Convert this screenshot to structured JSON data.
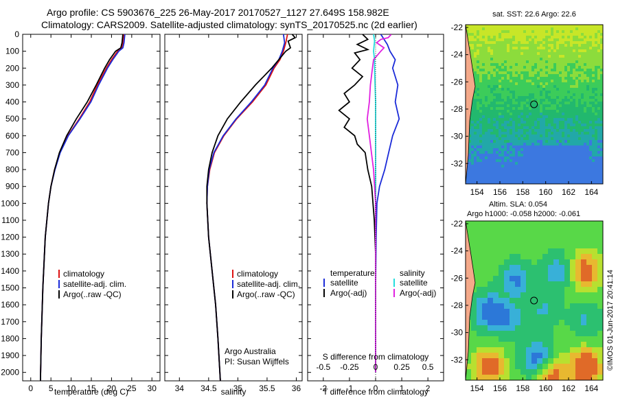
{
  "header": {
    "line1": "Argo profile: CS 5903676_225 26-May-2017 20170527_1127 27.649S 158.982E",
    "line2": "Climatology: CARS2009. Satellite-adjusted climatology: synTS_20170525.nc (2d earlier)"
  },
  "colors": {
    "climatology": "#dd1111",
    "satellite": "#1a2ad8",
    "argo": "#000000",
    "sal_satellite": "#22dddd",
    "sal_argo": "#e020e0"
  },
  "chart_data": [
    {
      "type": "line",
      "id": "temperature",
      "xlabel": "temperature (deg C)",
      "ylabel": "",
      "xlim": [
        -2,
        32
      ],
      "ylim": [
        2050,
        0
      ],
      "xticks": [
        0,
        5,
        10,
        15,
        20,
        25,
        30
      ],
      "yticks": [
        0,
        100,
        200,
        300,
        400,
        500,
        600,
        700,
        800,
        900,
        1000,
        1100,
        1200,
        1300,
        1400,
        1500,
        1600,
        1700,
        1800,
        1900,
        2000
      ],
      "legend": [
        "climatology",
        "satellite-adj. clim.",
        "Argo(..raw -QC)"
      ],
      "legend_placement": "center-right",
      "series": [
        {
          "name": "climatology",
          "color": "#dd1111",
          "depth": [
            0,
            50,
            80,
            100,
            150,
            200,
            300,
            400,
            500,
            600,
            700,
            800,
            900,
            1000,
            1200,
            1500,
            1800,
            2050
          ],
          "values": [
            23.0,
            22.8,
            22.5,
            21.5,
            20.0,
            18.7,
            16.5,
            14.6,
            12.0,
            9.2,
            7.2,
            5.9,
            5.0,
            4.4,
            3.6,
            3.0,
            2.6,
            2.4
          ]
        },
        {
          "name": "satellite-adj. clim.",
          "color": "#1a2ad8",
          "depth": [
            0,
            50,
            80,
            100,
            150,
            200,
            300,
            400,
            500,
            600,
            700,
            800,
            900,
            1000,
            1200,
            1500,
            1800,
            2050
          ],
          "values": [
            23.3,
            23.1,
            22.8,
            21.8,
            20.3,
            19.0,
            16.8,
            14.9,
            12.2,
            9.3,
            7.3,
            6.0,
            5.0,
            4.4,
            3.6,
            3.0,
            2.6,
            2.4
          ]
        },
        {
          "name": "Argo(..raw -QC)",
          "color": "#000000",
          "depth": [
            0,
            50,
            80,
            100,
            150,
            200,
            300,
            400,
            500,
            600,
            700,
            800,
            900,
            1000,
            1200,
            1500,
            1800,
            2050
          ],
          "values": [
            22.8,
            22.6,
            22.3,
            21.0,
            19.5,
            18.3,
            16.2,
            14.0,
            11.3,
            8.9,
            7.1,
            5.9,
            5.0,
            4.4,
            3.6,
            3.0,
            2.6,
            2.4
          ]
        }
      ]
    },
    {
      "type": "line",
      "id": "salinity",
      "xlabel": "salinity",
      "xlim": [
        33.75,
        36.1
      ],
      "ylim": [
        2050,
        0
      ],
      "xticks": [
        34,
        34.5,
        35,
        35.5,
        36
      ],
      "legend": [
        "climatology",
        "satellite-adj. clim.",
        "Argo(..raw -QC)"
      ],
      "legend_placement": "center-right",
      "annotation": [
        "Argo Australia",
        "PI: Susan Wijffels"
      ],
      "series": [
        {
          "name": "climatology",
          "color": "#dd1111",
          "depth": [
            0,
            50,
            100,
            150,
            200,
            300,
            400,
            500,
            600,
            700,
            800,
            900,
            1000,
            1200,
            1400,
            1600,
            1800,
            2050
          ],
          "values": [
            35.85,
            35.82,
            35.78,
            35.72,
            35.62,
            35.48,
            35.25,
            34.98,
            34.76,
            34.6,
            34.52,
            34.48,
            34.47,
            34.5,
            34.56,
            34.62,
            34.66,
            34.7
          ]
        },
        {
          "name": "satellite-adj. clim.",
          "color": "#1a2ad8",
          "depth": [
            0,
            50,
            100,
            150,
            200,
            300,
            400,
            500,
            600,
            700,
            800,
            900,
            1000,
            1200,
            1400,
            1600,
            1800,
            2050
          ],
          "values": [
            35.78,
            35.8,
            35.76,
            35.7,
            35.6,
            35.46,
            35.23,
            34.97,
            34.75,
            34.59,
            34.51,
            34.48,
            34.47,
            34.5,
            34.56,
            34.62,
            34.66,
            34.7
          ]
        },
        {
          "name": "Argo(..raw -QC)",
          "color": "#000000",
          "depth": [
            0,
            20,
            40,
            80,
            100,
            150,
            200,
            300,
            400,
            500,
            600,
            700,
            800,
            900,
            1000,
            1200,
            1400,
            1600,
            1800,
            2050
          ],
          "values": [
            35.93,
            35.98,
            35.86,
            35.9,
            35.82,
            35.7,
            35.58,
            35.3,
            35.05,
            34.82,
            34.66,
            34.56,
            34.5,
            34.47,
            34.47,
            34.5,
            34.56,
            34.62,
            34.66,
            34.7
          ]
        }
      ]
    },
    {
      "type": "line",
      "id": "difference",
      "xlabel": "T difference from climatology",
      "xlabel_top": "S difference from climatology",
      "xlim": [
        -2.6,
        2.6
      ],
      "ylim": [
        2050,
        0
      ],
      "xticks": [
        -2,
        -1,
        0,
        1,
        2
      ],
      "sticks": [
        -0.5,
        -0.25,
        0,
        0.25,
        0.5
      ],
      "stick_labels": [
        "-0.5",
        "-0.25",
        "0",
        "0.25",
        "0.5"
      ],
      "legend_left": {
        "title": "temperature",
        "items": [
          "satellite",
          "Argo(-adj)"
        ]
      },
      "legend_right": {
        "title": "salinity",
        "items": [
          "satellite",
          "Argo(-adj)"
        ]
      },
      "series": [
        {
          "name": "temperature satellite",
          "color": "#1a2ad8",
          "depth": [
            0,
            60,
            100,
            150,
            200,
            300,
            400,
            500,
            600,
            700,
            800,
            900,
            1000,
            1200,
            1500,
            2000
          ],
          "values": [
            0.2,
            0.45,
            0.55,
            0.75,
            0.65,
            0.85,
            0.75,
            0.9,
            0.65,
            0.5,
            0.35,
            0.15,
            0.05,
            0.02,
            0.0,
            0.0
          ]
        },
        {
          "name": "temperature Argo(-adj)",
          "color": "#000000",
          "depth": [
            0,
            30,
            60,
            90,
            110,
            150,
            200,
            250,
            300,
            350,
            400,
            450,
            500,
            550,
            600,
            650,
            700,
            800,
            900,
            1000,
            1100,
            1300,
            1500,
            2000
          ],
          "values": [
            -0.5,
            -0.3,
            -0.7,
            -0.3,
            -0.8,
            -0.6,
            -0.9,
            -0.5,
            -0.8,
            -1.2,
            -1.0,
            -1.4,
            -1.0,
            -1.2,
            -0.8,
            -0.7,
            -0.4,
            -0.3,
            -0.15,
            -0.1,
            -0.05,
            0.0,
            0.0,
            0.0
          ]
        },
        {
          "name": "salinity satellite",
          "color": "#22dddd",
          "depth": [
            0,
            40,
            100,
            150,
            200,
            300,
            400,
            500,
            600,
            800,
            1000,
            1500,
            2000
          ],
          "values": [
            -0.02,
            -0.01,
            -0.02,
            -0.01,
            -0.01,
            -0.005,
            0.0,
            0.0,
            0.0,
            0.0,
            0.0,
            0.0,
            0.0
          ]
        },
        {
          "name": "salinity Argo(-adj)",
          "color": "#e020e0",
          "depth": [
            0,
            20,
            30,
            50,
            80,
            100,
            150,
            200,
            300,
            400,
            500,
            600,
            700,
            800,
            900,
            1000,
            1200,
            1500,
            2000
          ],
          "values": [
            0.15,
            0.12,
            0.05,
            0.01,
            0.08,
            0.05,
            -0.02,
            -0.03,
            -0.05,
            -0.06,
            -0.08,
            -0.06,
            -0.04,
            -0.02,
            -0.01,
            0.0,
            0.0,
            0.0,
            0.0
          ]
        }
      ]
    },
    {
      "type": "heatmap",
      "id": "sst_map",
      "title": "sat. SST: 22.6  Argo: 22.6",
      "xticks": [
        154,
        156,
        158,
        160,
        162,
        164
      ],
      "yticks": [
        -22,
        -24,
        -26,
        -28,
        -30,
        -32
      ],
      "xlim": [
        153,
        165
      ],
      "ylim": [
        -33.5,
        -21.8
      ],
      "float_position": [
        158.98,
        -27.65
      ]
    },
    {
      "type": "heatmap",
      "id": "sla_map",
      "title_line1": "Altim. SLA: 0.054",
      "title_line2": "Argo h1000: -0.058  h2000: -0.061",
      "xticks": [
        154,
        156,
        158,
        160,
        162,
        164
      ],
      "yticks": [
        -22,
        -24,
        -26,
        -28,
        -30,
        -32
      ],
      "xlim": [
        153,
        165
      ],
      "ylim": [
        -33.5,
        -21.8
      ],
      "float_position": [
        158.98,
        -27.65
      ]
    }
  ],
  "footer": {
    "credit": "©IMOS 01-Jun-2017 20:41:14"
  }
}
